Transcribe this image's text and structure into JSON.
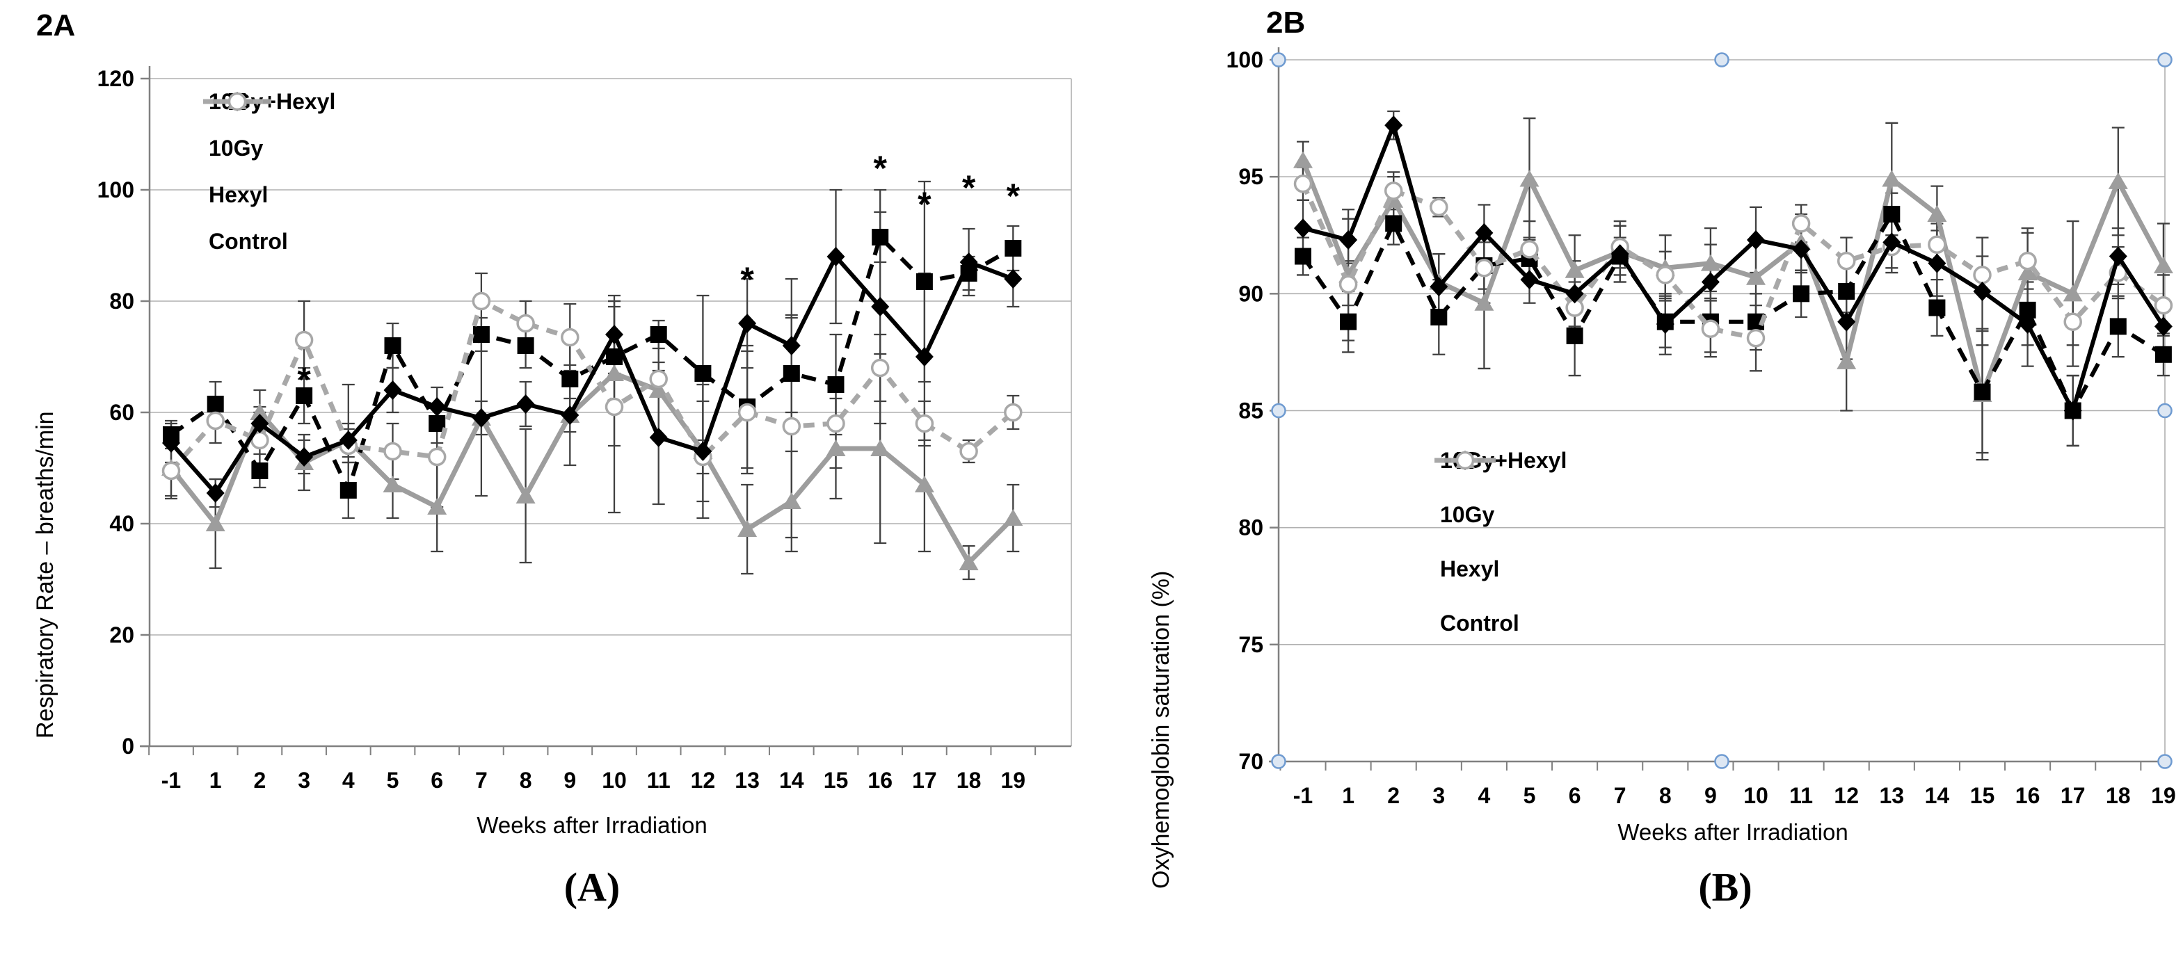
{
  "panels": {
    "a": {
      "corner_label": "2A",
      "caption": "(A)",
      "xlabel": "Weeks after Irradiation",
      "ylabel": "Respiratory Rate – breaths/min"
    },
    "b": {
      "corner_label": "2B",
      "caption": "(B)",
      "xlabel": "Weeks after Irradiation",
      "ylabel": "Oxyhemoglobin saturation (%)"
    }
  },
  "colors": {
    "black_series": "#000000",
    "hexyl_gray": "#9d9d9d",
    "control_gray": "#a8a8a8",
    "error_bar": "#404040",
    "gridline": "#b0b0b0",
    "axis": "#808080",
    "handle_fill": "#dde7f3",
    "handle_stroke": "#6f9bd1",
    "text": "#000000"
  },
  "chart_data": [
    {
      "id": "A",
      "type": "line",
      "title": "2A",
      "xlabel": "Weeks after Irradiation",
      "ylabel": "Respiratory Rate – breaths/min",
      "grid": true,
      "legend_position": "inside-top-left",
      "categories": [
        "-1",
        "1",
        "2",
        "3",
        "4",
        "5",
        "6",
        "7",
        "8",
        "9",
        "10",
        "11",
        "12",
        "13",
        "14",
        "15",
        "16",
        "17",
        "18",
        "19"
      ],
      "yticks": [
        0,
        20,
        40,
        60,
        80,
        100,
        120
      ],
      "ylim": [
        0,
        120
      ],
      "series": [
        {
          "name": "10Gy+Hexyl",
          "marker": "diamond",
          "line_style": "solid",
          "color": "#000000",
          "values": [
            54.5,
            45.5,
            58,
            52,
            55,
            64,
            61,
            59,
            61.5,
            59.5,
            74,
            55.5,
            53,
            76,
            72,
            88,
            79,
            70,
            87,
            84
          ],
          "errors": [
            3.5,
            2.5,
            3,
            3,
            3,
            4,
            3.5,
            3,
            4,
            3,
            7,
            12,
            9,
            8,
            12,
            12,
            21,
            15,
            6,
            5
          ]
        },
        {
          "name": "10Gy",
          "marker": "square",
          "line_style": "dashed",
          "color": "#000000",
          "values": [
            56,
            61.5,
            49.5,
            63,
            46,
            72,
            58,
            74,
            72,
            66,
            70,
            74,
            67,
            61,
            67,
            65,
            91.5,
            83.5,
            85,
            89.5
          ],
          "errors": [
            2.5,
            4,
            3,
            5,
            5,
            4,
            3.5,
            3,
            4,
            7,
            9,
            2.5,
            14,
            11,
            10,
            9,
            4.5,
            18,
            3,
            4
          ]
        },
        {
          "name": "Hexyl",
          "marker": "triangle",
          "line_style": "solid",
          "color": "#9d9d9d",
          "values": [
            50,
            40,
            60,
            51,
            55,
            47,
            43,
            59,
            45,
            59.5,
            67,
            64,
            53,
            39,
            44,
            53.5,
            53.5,
            47,
            33,
            41
          ],
          "errors": [
            5,
            8,
            4,
            5,
            10,
            6,
            8,
            14,
            12,
            9,
            13,
            9,
            12,
            8,
            9,
            9,
            17,
            12,
            3,
            6
          ]
        },
        {
          "name": "Control",
          "marker": "circle-open",
          "line_style": "dashed",
          "color": "#a8a8a8",
          "values": [
            49.5,
            58.5,
            55,
            73,
            54,
            53,
            52,
            80,
            76,
            73.5,
            61,
            66,
            52,
            60,
            57.5,
            58,
            68,
            58,
            53,
            60
          ],
          "errors": [
            5,
            4,
            5,
            7,
            3,
            5,
            9,
            5,
            4,
            6,
            19,
            3,
            3,
            11,
            20,
            8,
            6,
            4,
            2,
            3
          ]
        }
      ],
      "annotations": [
        {
          "category": "3",
          "value": 66,
          "text": "*"
        },
        {
          "category": "13",
          "value": 84,
          "text": "*"
        },
        {
          "category": "16",
          "value": 104,
          "text": "*"
        },
        {
          "category": "17",
          "value": 97.5,
          "text": "*"
        },
        {
          "category": "18",
          "value": 100.5,
          "text": "*"
        },
        {
          "category": "19",
          "value": 99,
          "text": "*"
        }
      ],
      "selection_handles": []
    },
    {
      "id": "B",
      "type": "line",
      "title": "2B",
      "xlabel": "Weeks after Irradiation",
      "ylabel": "Oxyhemoglobin saturation (%)",
      "grid": true,
      "legend_position": "inside-center-left",
      "categories": [
        "-1",
        "1",
        "2",
        "3",
        "4",
        "5",
        "6",
        "7",
        "8",
        "9",
        "10",
        "11",
        "12",
        "13",
        "14",
        "15",
        "16",
        "17",
        "18",
        "19"
      ],
      "yticks": [
        70,
        75,
        80,
        85,
        90,
        95,
        100
      ],
      "ylim": [
        70,
        100
      ],
      "series": [
        {
          "name": "10Gy+Hexyl",
          "marker": "diamond",
          "line_style": "solid",
          "color": "#000000",
          "values": [
            92.8,
            92.3,
            97.2,
            90.3,
            92.6,
            90.6,
            90.0,
            91.7,
            88.7,
            90.5,
            92.3,
            91.9,
            88.8,
            92.2,
            91.3,
            90.1,
            88.7,
            85.0,
            91.6,
            88.6
          ],
          "errors": [
            1.2,
            0.9,
            0.6,
            1.4,
            1.2,
            1.0,
            1.4,
            1.2,
            1.3,
            1.6,
            1.4,
            1.0,
            1.6,
            1.1,
            1.4,
            2.3,
            1.8,
            1.5,
            1.2,
            1.1
          ]
        },
        {
          "name": "10Gy",
          "marker": "square",
          "line_style": "dashed",
          "color": "#000000",
          "values": [
            91.6,
            88.8,
            93.0,
            89.0,
            91.2,
            91.5,
            88.2,
            91.6,
            88.8,
            88.8,
            88.8,
            90.0,
            90.1,
            93.4,
            89.4,
            85.8,
            89.3,
            85.0,
            88.6,
            87.4
          ],
          "errors": [
            0.8,
            1.3,
            0.9,
            1.6,
            1.0,
            0.9,
            1.7,
            0.8,
            1.1,
            1.3,
            1.2,
            1.0,
            1.4,
            0.9,
            1.2,
            2.6,
            1.5,
            1.5,
            1.3,
            0.9
          ]
        },
        {
          "name": "Hexyl",
          "marker": "triangle",
          "line_style": "solid",
          "color": "#9d9d9d",
          "values": [
            95.7,
            90.8,
            94.0,
            90.5,
            89.6,
            94.9,
            91.0,
            91.8,
            91.1,
            91.3,
            90.7,
            92.2,
            87.1,
            94.9,
            93.4,
            85.7,
            90.9,
            90.0,
            94.8,
            91.2
          ],
          "errors": [
            0.8,
            2.8,
            1.0,
            1.2,
            2.8,
            2.6,
            1.5,
            1.3,
            1.4,
            1.5,
            1.6,
            1.2,
            2.1,
            2.4,
            1.2,
            2.8,
            1.9,
            3.1,
            2.3,
            1.8
          ]
        },
        {
          "name": "Control",
          "marker": "circle-open",
          "line_style": "dashed",
          "color": "#a8a8a8",
          "values": [
            94.7,
            90.4,
            94.4,
            93.7,
            91.1,
            91.9,
            89.4,
            92.0,
            90.8,
            88.5,
            88.1,
            93.0,
            91.4,
            92.0,
            92.1,
            90.8,
            91.4,
            88.8,
            90.9,
            89.5
          ],
          "errors": [
            0.7,
            0.9,
            0.8,
            0.4,
            1.5,
            1.2,
            1.1,
            0.9,
            1.0,
            1.2,
            1.4,
            0.8,
            1.0,
            1.1,
            0.9,
            0.8,
            1.2,
            1.0,
            1.1,
            1.3
          ]
        }
      ],
      "annotations": [],
      "selection_handles": [
        "top-left",
        "top-center",
        "top-right",
        "middle-left",
        "middle-right",
        "bottom-left",
        "bottom-center",
        "bottom-right"
      ]
    }
  ]
}
